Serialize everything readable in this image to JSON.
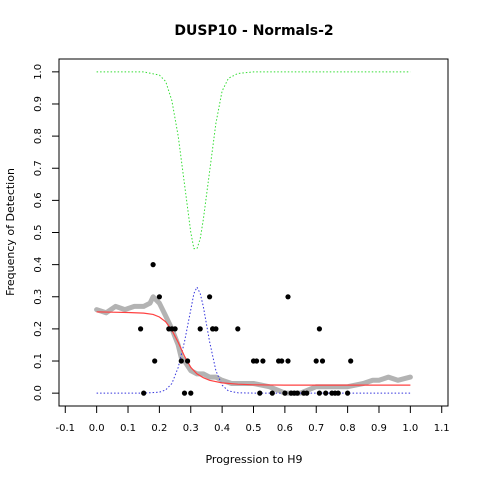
{
  "chart_data": {
    "type": "scatter",
    "title": "DUSP10 - Normals-2",
    "xlabel": "Progression to H9",
    "ylabel": "Frequency of Detection",
    "xlim": [
      -0.12,
      1.12
    ],
    "ylim": [
      -0.04,
      1.04
    ],
    "x_ticks": [
      "-0.1",
      "0.0",
      "0.1",
      "0.2",
      "0.3",
      "0.4",
      "0.5",
      "0.6",
      "0.7",
      "0.8",
      "0.9",
      "1.0",
      "1.1"
    ],
    "y_ticks": [
      "0.0",
      "0.1",
      "0.2",
      "0.3",
      "0.4",
      "0.5",
      "0.6",
      "0.7",
      "0.8",
      "0.9",
      "1.0"
    ],
    "grid": false,
    "legend": "none",
    "colors": {
      "points": "#000000",
      "moving_average": "#b3b3b3",
      "fitted_curve": "#ff4040",
      "upper_curve": "#33dd33",
      "peak_curve": "#3333dd"
    },
    "series": [
      {
        "type": "scatter",
        "x": [
          0.14,
          0.15,
          0.18,
          0.185,
          0.2,
          0.23,
          0.24,
          0.25,
          0.27,
          0.28,
          0.29,
          0.3,
          0.33,
          0.36,
          0.37,
          0.37,
          0.38,
          0.45,
          0.5,
          0.51,
          0.52,
          0.53,
          0.56,
          0.58,
          0.59,
          0.6,
          0.61,
          0.61,
          0.62,
          0.63,
          0.64,
          0.66,
          0.67,
          0.7,
          0.71,
          0.71,
          0.72,
          0.73,
          0.75,
          0.76,
          0.77,
          0.8,
          0.81
        ],
        "values": [
          0.2,
          0.0,
          0.4,
          0.1,
          0.3,
          0.2,
          0.2,
          0.2,
          0.1,
          0.0,
          0.1,
          0.0,
          0.2,
          0.3,
          0.2,
          0.2,
          0.2,
          0.2,
          0.1,
          0.1,
          0.0,
          0.1,
          0.0,
          0.1,
          0.1,
          0.0,
          0.3,
          0.1,
          0.0,
          0.0,
          0.0,
          0.0,
          0.0,
          0.1,
          0.2,
          0.0,
          0.1,
          0.0,
          0.0,
          0.0,
          0.0,
          0.0,
          0.1
        ]
      },
      {
        "type": "line",
        "x": [
          0.0,
          0.03,
          0.06,
          0.09,
          0.12,
          0.15,
          0.17,
          0.18,
          0.19,
          0.2,
          0.22,
          0.24,
          0.26,
          0.27,
          0.28,
          0.3,
          0.32,
          0.34,
          0.36,
          0.38,
          0.4,
          0.43,
          0.46,
          0.5,
          0.55,
          0.6,
          0.65,
          0.7,
          0.75,
          0.8,
          0.85,
          0.88,
          0.9,
          0.93,
          0.96,
          1.0
        ],
        "values": [
          0.26,
          0.25,
          0.27,
          0.26,
          0.27,
          0.27,
          0.28,
          0.3,
          0.29,
          0.28,
          0.24,
          0.2,
          0.15,
          0.11,
          0.1,
          0.07,
          0.06,
          0.06,
          0.05,
          0.05,
          0.04,
          0.03,
          0.03,
          0.03,
          0.02,
          0.0,
          0.0,
          0.02,
          0.02,
          0.02,
          0.03,
          0.04,
          0.04,
          0.05,
          0.04,
          0.05
        ]
      },
      {
        "type": "line",
        "x": [
          0.0,
          0.05,
          0.1,
          0.15,
          0.18,
          0.2,
          0.22,
          0.24,
          0.26,
          0.28,
          0.3,
          0.32,
          0.34,
          0.36,
          0.4,
          0.45,
          0.5,
          0.6,
          0.7,
          0.8,
          0.9,
          1.0
        ],
        "values": [
          0.253,
          0.252,
          0.251,
          0.249,
          0.245,
          0.237,
          0.222,
          0.196,
          0.158,
          0.115,
          0.08,
          0.06,
          0.048,
          0.04,
          0.032,
          0.028,
          0.026,
          0.025,
          0.025,
          0.025,
          0.025,
          0.025
        ]
      },
      {
        "type": "line",
        "x": [
          0.0,
          0.15,
          0.2,
          0.22,
          0.24,
          0.26,
          0.28,
          0.3,
          0.31,
          0.32,
          0.33,
          0.34,
          0.36,
          0.38,
          0.4,
          0.42,
          0.45,
          0.5,
          0.6,
          1.0
        ],
        "values": [
          1.0,
          1.0,
          0.99,
          0.97,
          0.91,
          0.8,
          0.65,
          0.5,
          0.45,
          0.45,
          0.48,
          0.54,
          0.69,
          0.84,
          0.94,
          0.98,
          0.995,
          1.0,
          1.0,
          1.0
        ]
      },
      {
        "type": "line",
        "x": [
          0.0,
          0.15,
          0.2,
          0.22,
          0.24,
          0.26,
          0.28,
          0.3,
          0.31,
          0.32,
          0.33,
          0.34,
          0.36,
          0.38,
          0.4,
          0.42,
          0.45,
          0.5,
          0.6,
          1.0
        ],
        "values": [
          0.0,
          0.0,
          0.003,
          0.01,
          0.03,
          0.08,
          0.16,
          0.26,
          0.31,
          0.33,
          0.31,
          0.27,
          0.16,
          0.07,
          0.025,
          0.007,
          0.001,
          0.0,
          0.0,
          0.0
        ]
      }
    ]
  }
}
